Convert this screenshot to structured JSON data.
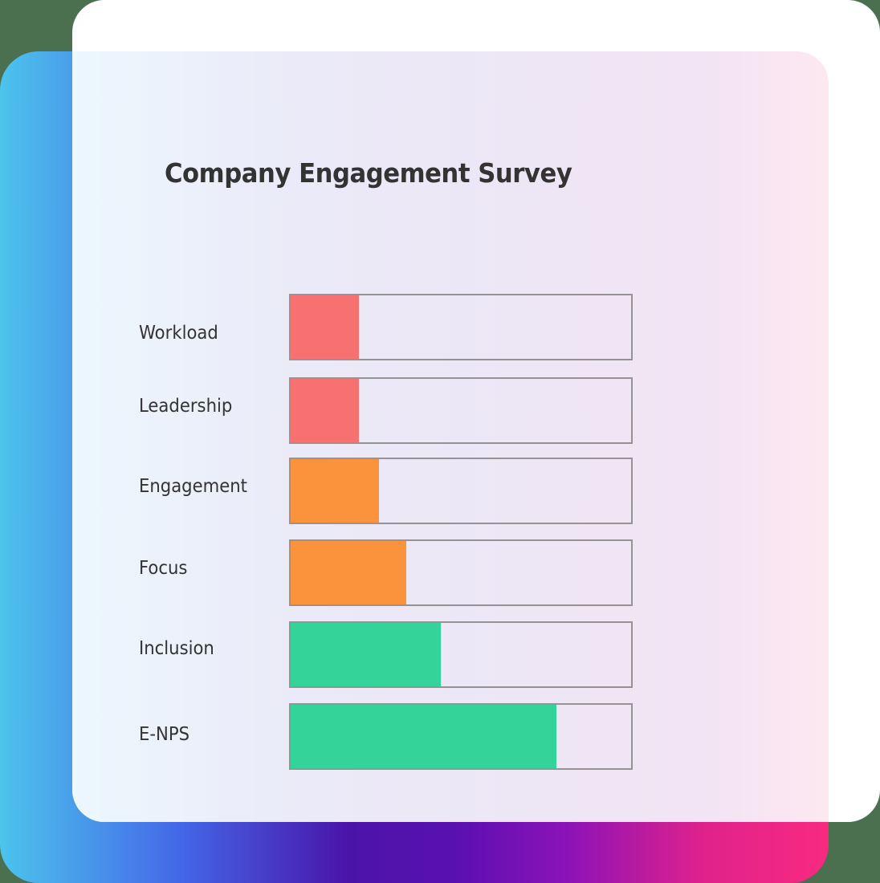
{
  "title": "Company Engagement Survey",
  "colors": {
    "low": "#f87171",
    "mid": "#fb923c",
    "high": "#34d399",
    "bar_border": "#959395",
    "text": "#333333"
  },
  "rows": [
    {
      "label": "Workload",
      "value": 20,
      "color": "#f87171"
    },
    {
      "label": "Leadership",
      "value": 20,
      "color": "#f87171"
    },
    {
      "label": "Engagement",
      "value": 26,
      "color": "#fb923c"
    },
    {
      "label": "Focus",
      "value": 34,
      "color": "#fb923c"
    },
    {
      "label": "Inclusion",
      "value": 44,
      "color": "#34d399"
    },
    {
      "label": "E-NPS",
      "value": 78,
      "color": "#34d399"
    }
  ],
  "chart_data": {
    "type": "bar",
    "orientation": "horizontal",
    "title": "Company Engagement Survey",
    "categories": [
      "Workload",
      "Leadership",
      "Engagement",
      "Focus",
      "Inclusion",
      "E-NPS"
    ],
    "values": [
      20,
      20,
      26,
      34,
      44,
      78
    ],
    "colors": [
      "#f87171",
      "#f87171",
      "#fb923c",
      "#fb923c",
      "#34d399",
      "#34d399"
    ],
    "xlabel": "",
    "ylabel": "",
    "xlim": [
      0,
      100
    ],
    "grid": false,
    "legend": "none"
  }
}
